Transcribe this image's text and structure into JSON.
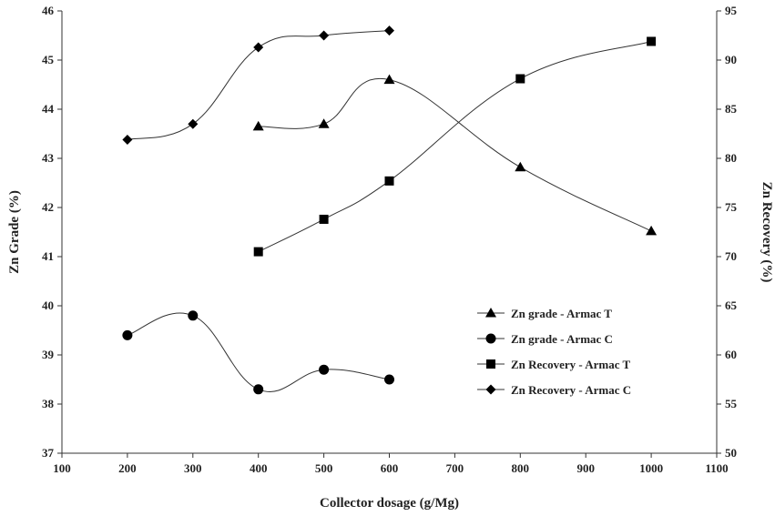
{
  "chart_data": {
    "type": "line",
    "title": "",
    "xlabel": "Collector dosage (g/Mg)",
    "ylabel": "Zn Grade (%)",
    "y2label": "Zn Recovery (%)",
    "xlim": [
      100,
      1100
    ],
    "ylim": [
      37,
      46
    ],
    "y2lim": [
      50,
      95
    ],
    "xticks": [
      "100",
      "200",
      "300",
      "400",
      "500",
      "600",
      "700",
      "800",
      "900",
      "1000",
      "1100"
    ],
    "yticks": [
      "37",
      "38",
      "39",
      "40",
      "41",
      "42",
      "43",
      "44",
      "45",
      "46"
    ],
    "y2ticks": [
      "50",
      "55",
      "60",
      "65",
      "70",
      "75",
      "80",
      "85",
      "90",
      "95"
    ],
    "grid": false,
    "legend_position": "center-right",
    "series": [
      {
        "name": "Zn grade - Armac T",
        "marker": "triangle",
        "axis": "left",
        "x": [
          400,
          500,
          600,
          800,
          1000
        ],
        "y": [
          43.65,
          43.7,
          44.6,
          42.82,
          41.52
        ]
      },
      {
        "name": "Zn grade - Armac C",
        "marker": "circle",
        "axis": "left",
        "x": [
          200,
          300,
          400,
          500,
          600
        ],
        "y": [
          39.4,
          39.8,
          38.3,
          38.7,
          38.5
        ]
      },
      {
        "name": "Zn Recovery - Armac T",
        "marker": "square",
        "axis": "right",
        "x": [
          400,
          500,
          600,
          800,
          1000
        ],
        "y": [
          70.5,
          73.8,
          77.7,
          88.1,
          91.9
        ]
      },
      {
        "name": "Zn Recovery - Armac C",
        "marker": "diamond",
        "axis": "right",
        "x": [
          200,
          300,
          400,
          500,
          600
        ],
        "y": [
          81.9,
          83.5,
          91.3,
          92.5,
          93.0
        ]
      }
    ]
  }
}
